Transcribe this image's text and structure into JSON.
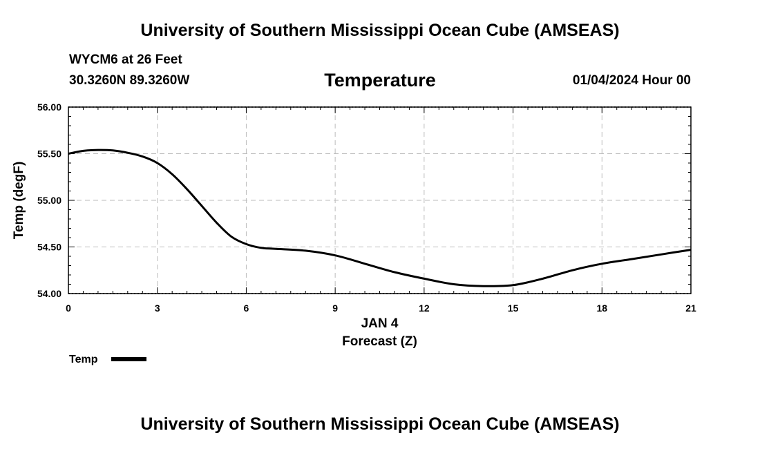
{
  "header": {
    "title": "University of Southern Mississippi Ocean Cube (AMSEAS)",
    "station": "WYCM6 at 26 Feet",
    "coords": "30.3260N  89.3260W",
    "subtitle": "Temperature",
    "datetime": "01/04/2024 Hour 00"
  },
  "footer": {
    "title": "University of Southern Mississippi Ocean Cube (AMSEAS)"
  },
  "chart_data": {
    "type": "line",
    "title": "Temperature",
    "xlabel": "Forecast (Z)",
    "x_date_label": "JAN 4",
    "ylabel": "Temp (degF)",
    "xlim": [
      0,
      21
    ],
    "ylim": [
      54.0,
      56.0
    ],
    "x_ticks": [
      0,
      3,
      6,
      9,
      12,
      15,
      18,
      21
    ],
    "x_tick_labels": [
      "0",
      "3",
      "6",
      "9",
      "12",
      "15",
      "18",
      "21"
    ],
    "y_ticks": [
      54.0,
      54.5,
      55.0,
      55.5,
      56.0
    ],
    "y_tick_labels": [
      "54.00",
      "54.50",
      "55.00",
      "55.50",
      "56.00"
    ],
    "grid": true,
    "legend": [
      {
        "name": "Temp",
        "color": "#000000"
      }
    ],
    "series": [
      {
        "name": "Temp",
        "color": "#000000",
        "x": [
          0,
          0.5,
          1,
          1.5,
          2,
          2.5,
          3,
          3.5,
          4,
          4.5,
          5,
          5.5,
          6,
          6.5,
          7,
          8,
          9,
          10,
          11,
          12,
          13,
          14,
          15,
          16,
          17,
          18,
          19,
          20,
          21
        ],
        "values": [
          55.5,
          55.53,
          55.54,
          55.535,
          55.51,
          55.47,
          55.4,
          55.28,
          55.12,
          54.94,
          54.76,
          54.61,
          54.53,
          54.49,
          54.48,
          54.46,
          54.41,
          54.32,
          54.23,
          54.16,
          54.1,
          54.08,
          54.09,
          54.16,
          54.25,
          54.32,
          54.37,
          54.42,
          54.47
        ]
      }
    ]
  }
}
